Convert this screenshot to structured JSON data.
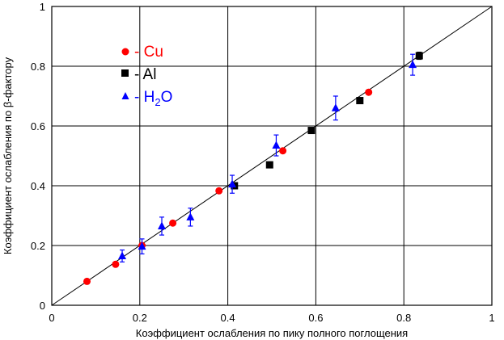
{
  "chart_data": {
    "type": "scatter",
    "title": "",
    "xlabel": "Коэффициент ослабления по пику полного поглощения",
    "ylabel": "Коэффициент ослабления по β-фактору",
    "xlim": [
      0,
      1
    ],
    "ylim": [
      0,
      1
    ],
    "xticks": [
      "0",
      "0.2",
      "0.4",
      "0.6",
      "0.8",
      "1"
    ],
    "yticks": [
      "0",
      "0.2",
      "0.4",
      "0.6",
      "0.8",
      "1"
    ],
    "grid": true,
    "legend_position": "top-left",
    "reference_line": {
      "from": [
        0,
        0
      ],
      "to": [
        1,
        1
      ]
    },
    "series": [
      {
        "name": "- Cu",
        "marker": "circle",
        "color": "#ff0000",
        "points": [
          {
            "x": 0.08,
            "y": 0.08
          },
          {
            "x": 0.145,
            "y": 0.137
          },
          {
            "x": 0.205,
            "y": 0.2
          },
          {
            "x": 0.275,
            "y": 0.275
          },
          {
            "x": 0.38,
            "y": 0.383
          },
          {
            "x": 0.525,
            "y": 0.517
          },
          {
            "x": 0.72,
            "y": 0.713
          }
        ]
      },
      {
        "name": "- Al",
        "marker": "square",
        "color": "#000000",
        "points": [
          {
            "x": 0.415,
            "y": 0.4
          },
          {
            "x": 0.495,
            "y": 0.47
          },
          {
            "x": 0.59,
            "y": 0.585
          },
          {
            "x": 0.7,
            "y": 0.685
          },
          {
            "x": 0.835,
            "y": 0.835,
            "err": 0.012
          }
        ]
      },
      {
        "name": "- H2O",
        "marker": "triangle",
        "color": "#0000ff",
        "points": [
          {
            "x": 0.16,
            "y": 0.165,
            "err": 0.02
          },
          {
            "x": 0.205,
            "y": 0.197,
            "err": 0.025
          },
          {
            "x": 0.25,
            "y": 0.265,
            "err": 0.03
          },
          {
            "x": 0.315,
            "y": 0.295,
            "err": 0.03
          },
          {
            "x": 0.41,
            "y": 0.405,
            "err": 0.03
          },
          {
            "x": 0.51,
            "y": 0.535,
            "err": 0.035
          },
          {
            "x": 0.645,
            "y": 0.66,
            "err": 0.04
          },
          {
            "x": 0.82,
            "y": 0.805,
            "err": 0.035
          }
        ]
      }
    ]
  },
  "legend": {
    "cu_label": "- Cu",
    "al_label": "- Al",
    "h2o_prefix": "- H",
    "h2o_sub": "2",
    "h2o_suffix": "O"
  }
}
